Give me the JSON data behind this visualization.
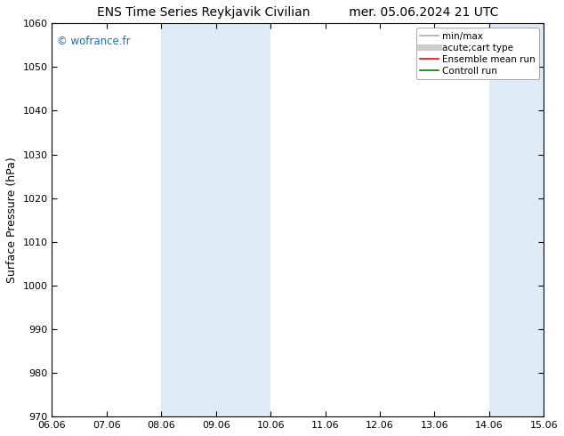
{
  "title_left": "ENS Time Series Reykjavik Civilian",
  "title_right": "mer. 05.06.2024 21 UTC",
  "ylabel": "Surface Pressure (hPa)",
  "ylim": [
    970,
    1060
  ],
  "yticks": [
    970,
    980,
    990,
    1000,
    1010,
    1020,
    1030,
    1040,
    1050,
    1060
  ],
  "x_labels": [
    "06.06",
    "07.06",
    "08.06",
    "09.06",
    "10.06",
    "11.06",
    "12.06",
    "13.06",
    "14.06",
    "15.06"
  ],
  "x_values": [
    0,
    1,
    2,
    3,
    4,
    5,
    6,
    7,
    8,
    9
  ],
  "xlim": [
    0,
    9
  ],
  "shaded_bands": [
    {
      "xmin": 2,
      "xmax": 3,
      "color": "#deeaf5"
    },
    {
      "xmin": 3,
      "xmax": 4,
      "color": "#deeaf5"
    },
    {
      "xmin": 8,
      "xmax": 9,
      "color": "#deeaf5"
    }
  ],
  "watermark": "© wofrance.fr",
  "watermark_color": "#1a6fc4",
  "legend_items": [
    {
      "label": "min/max",
      "color": "#aaaaaa",
      "lw": 1.2,
      "style": "-"
    },
    {
      "label": "acute;cart type",
      "color": "#cccccc",
      "lw": 5,
      "style": "-"
    },
    {
      "label": "Ensemble mean run",
      "color": "red",
      "lw": 1.2,
      "style": "-"
    },
    {
      "label": "Controll run",
      "color": "green",
      "lw": 1.2,
      "style": "-"
    }
  ],
  "bg_color": "#ffffff",
  "plot_bg_color": "#ffffff",
  "title_fontsize": 10,
  "ylabel_fontsize": 9,
  "tick_fontsize": 8
}
